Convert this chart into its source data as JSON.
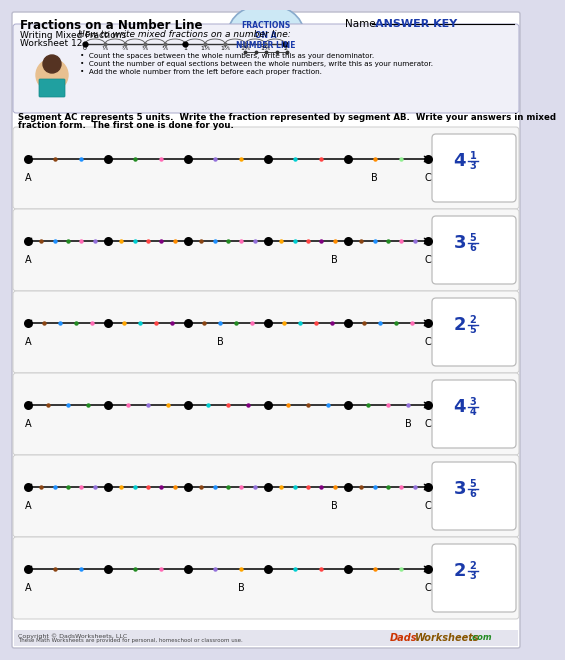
{
  "title": "Fractions on a Number Line",
  "subtitle1": "Writing Mixed Fractions",
  "subtitle2": "Worksheet 12",
  "name_label": "Name:",
  "answer_key": "ANSWER KEY",
  "badge_lines": [
    "FRACTIONS",
    "ON A",
    "NUMBER LINE"
  ],
  "hint_title": "How to write mixed fractions on a number line:",
  "hint_bullets": [
    "Count the spaces between the whole numbers, write this as your denominator.",
    "Count the number of equal sections between the whole numbers, write this as your numerator.",
    "Add the whole number from the left before each proper fraction."
  ],
  "instructions_line1": "Segment AC represents 5 units.  Write the fraction represented by segment AB.  Write your answers in mixed",
  "instructions_line2": "fraction form.  The first one is done for you.",
  "answer_texts": [
    [
      "4",
      "1",
      "3"
    ],
    [
      "3",
      "5",
      "6"
    ],
    [
      "2",
      "2",
      "5"
    ],
    [
      "4",
      "3",
      "4"
    ],
    [
      "3",
      "5",
      "6"
    ],
    [
      "2",
      "2",
      "3"
    ]
  ],
  "B_positions": [
    13,
    23,
    12,
    19,
    23,
    8
  ],
  "C_positions": [
    15,
    30,
    25,
    20,
    30,
    15
  ],
  "denominators": [
    3,
    6,
    5,
    4,
    6,
    3
  ],
  "bg_color": "#dcdcec",
  "panel_bg": "#f7f7f7",
  "answer_color": "#1a3aaa",
  "copyright": "Copyright © DadsWorksheets, LLC",
  "copyright2": "These Math Worksheets are provided for personal, homeschool or classroom use."
}
